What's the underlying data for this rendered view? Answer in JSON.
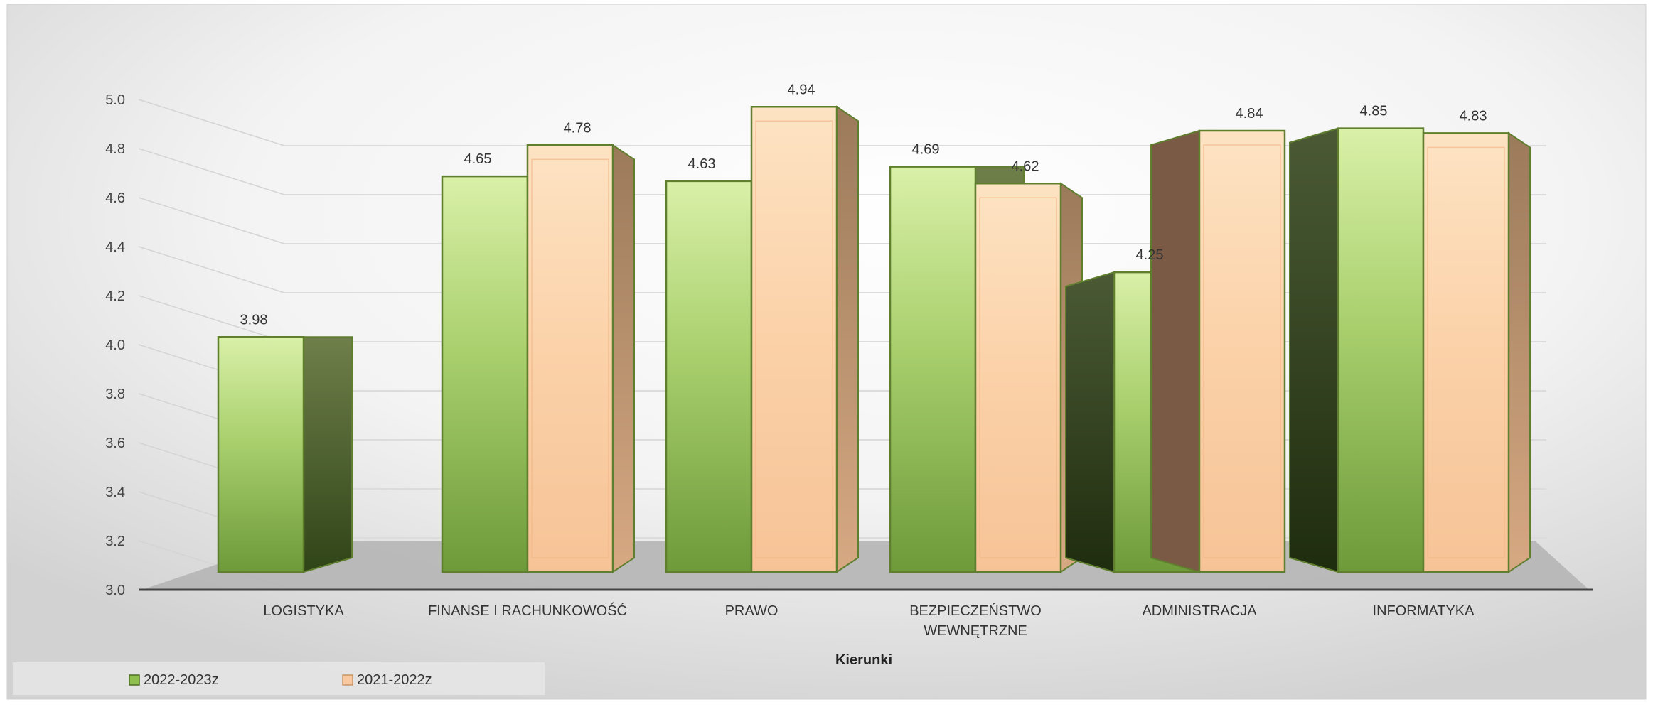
{
  "chart_data": {
    "type": "bar",
    "categories": [
      "LOGISTYKA",
      "FINANSE I RACHUNKOWOŚĆ",
      "PRAWO",
      "BEZPIECZEŃSTWO WEWNĘTRZNE",
      "ADMINISTRACJA",
      "INFORMATYKA"
    ],
    "category_lines": [
      [
        "LOGISTYKA"
      ],
      [
        "FINANSE I RACHUNKOWOŚĆ"
      ],
      [
        "PRAWO"
      ],
      [
        "BEZPIECZEŃSTWO",
        "WEWNĘTRZNE"
      ],
      [
        "ADMINISTRACJA"
      ],
      [
        "INFORMATYKA"
      ]
    ],
    "series": [
      {
        "name": "2022-2023z",
        "values": [
          3.98,
          4.65,
          4.63,
          4.69,
          4.25,
          4.85
        ],
        "color": "#8fbf4f"
      },
      {
        "name": "2021-2022z",
        "values": [
          null,
          4.78,
          4.94,
          4.62,
          4.84,
          4.83
        ],
        "color": "#f8c9a0"
      }
    ],
    "data_labels": [
      [
        "3.98",
        "4.65",
        "4.63",
        "4.69",
        "4.25",
        "4.85"
      ],
      [
        null,
        "4.78",
        "4.94",
        "4.62",
        "4.84",
        "4.83"
      ]
    ],
    "y_ticks": [
      "3.0",
      "3.2",
      "3.4",
      "3.6",
      "3.8",
      "4.0",
      "4.2",
      "4.4",
      "4.6",
      "4.8",
      "5.0"
    ],
    "ylim": [
      3.0,
      5.0
    ],
    "title": "",
    "xlabel": "Kierunki",
    "ylabel": "",
    "grid": true,
    "legend_position": "bottom-left",
    "style": "3d-clustered-column"
  }
}
